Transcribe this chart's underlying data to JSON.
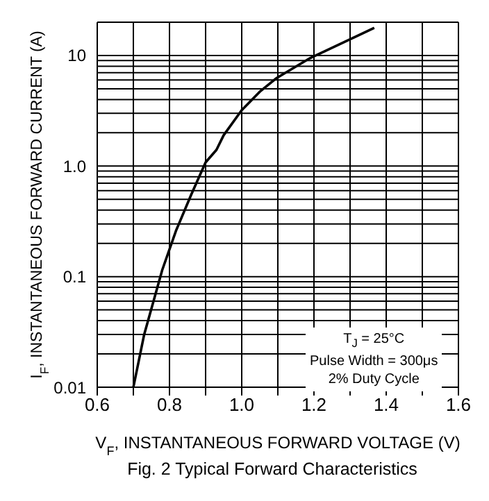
{
  "chart_data": {
    "type": "line",
    "xlabel": "V$_{F}$, INSTANTANEOUS FORWARD VOLTAGE (V)",
    "ylabel": "I$_{F}$, INSTANTANEOUS FORWARD CURRENT (A)",
    "annotations": [
      "T$_{J}$ = 25°C",
      "Pulse Width = 300μs",
      "2% Duty Cycle",
      "Fig. 2 Typical Forward Characteristics"
    ],
    "x": [
      0.7,
      0.73,
      0.78,
      0.818,
      0.86,
      0.9,
      0.93,
      0.95,
      1.0,
      1.05,
      1.095,
      1.19,
      1.3,
      1.367
    ],
    "series": [
      {
        "color": "#000000",
        "values": [
          0.01,
          0.03,
          0.115,
          0.26,
          0.55,
          1.08,
          1.4,
          1.9,
          3.2,
          4.7,
          6.2,
          9.5,
          14,
          17.8
        ]
      }
    ],
    "log": "y",
    "grid": true,
    "legend": false,
    "marker": "none",
    "line_style": "solid",
    "xlim": [
      0.6,
      1.6
    ],
    "ylim": [
      0.01,
      20
    ],
    "xticks": [
      {
        "value": 0.6,
        "label": "0.6"
      },
      {
        "value": 0.7,
        "label": null
      },
      {
        "value": 0.8,
        "label": "0.8"
      },
      {
        "value": 0.9,
        "label": null
      },
      {
        "value": 1.0,
        "label": "1.0"
      },
      {
        "value": 1.1,
        "label": null
      },
      {
        "value": 1.2,
        "label": "1.2"
      },
      {
        "value": 1.3,
        "label": null
      },
      {
        "value": 1.4,
        "label": "1.4"
      },
      {
        "value": 1.5,
        "label": null
      },
      {
        "value": 1.6,
        "label": "1.6"
      }
    ],
    "yticks": [
      0.01,
      {
        "value": 0.02,
        "label": null
      },
      {
        "value": 0.03,
        "label": null
      },
      {
        "value": 0.04,
        "label": null
      },
      {
        "value": 0.05,
        "label": null
      },
      {
        "value": 0.06,
        "label": null
      },
      {
        "value": 0.07,
        "label": null
      },
      {
        "value": 0.08,
        "label": null
      },
      {
        "value": 0.09,
        "label": null
      },
      0.1,
      {
        "value": 0.2,
        "label": null
      },
      {
        "value": 0.3,
        "label": null
      },
      {
        "value": 0.4,
        "label": null
      },
      {
        "value": 0.5,
        "label": null
      },
      {
        "value": 0.6,
        "label": null
      },
      {
        "value": 0.7,
        "label": null
      },
      {
        "value": 0.8,
        "label": null
      },
      {
        "value": 0.9,
        "label": null
      },
      {
        "value": 1,
        "label": "1.0"
      },
      {
        "value": 2,
        "label": null
      },
      {
        "value": 3,
        "label": null
      },
      {
        "value": 4,
        "label": null
      },
      {
        "value": 5,
        "label": null
      },
      {
        "value": 6,
        "label": null
      },
      {
        "value": 7,
        "label": null
      },
      {
        "value": 8,
        "label": null
      },
      {
        "value": 9,
        "label": null
      },
      10,
      {
        "value": 20,
        "label": null
      }
    ]
  }
}
